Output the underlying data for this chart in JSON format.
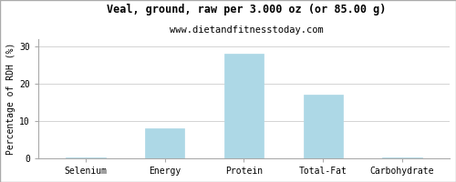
{
  "title": "Veal, ground, raw per 3.000 oz (or 85.00 g)",
  "subtitle": "www.dietandfitnesstoday.com",
  "categories": [
    "Selenium",
    "Energy",
    "Protein",
    "Total-Fat",
    "Carbohydrate"
  ],
  "values": [
    0.3,
    8.0,
    28.0,
    17.0,
    0.2
  ],
  "bar_color": "#ADD8E6",
  "bar_edgecolor": "#ADD8E6",
  "ylabel": "Percentage of RDH (%)",
  "ylim": [
    0,
    32
  ],
  "yticks": [
    0,
    10,
    20,
    30
  ],
  "background_color": "#ffffff",
  "grid_color": "#cccccc",
  "border_color": "#aaaaaa",
  "title_fontsize": 8.5,
  "subtitle_fontsize": 7.5,
  "ylabel_fontsize": 7,
  "tick_fontsize": 7
}
